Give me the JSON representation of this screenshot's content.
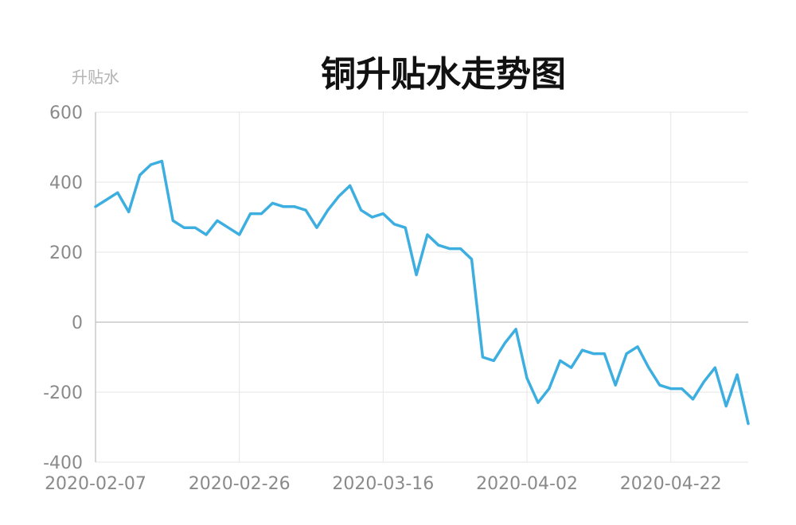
{
  "chart_data": {
    "type": "line",
    "title": "铜升贴水走势图",
    "ylabel": "升贴水",
    "xlabel": "",
    "ylim": [
      -400,
      600
    ],
    "y_ticks": [
      "600",
      "400",
      "200",
      "0",
      "-200",
      "-400"
    ],
    "y_tick_values": [
      600,
      400,
      200,
      0,
      -200,
      -400
    ],
    "x_ticks": [
      "2020-02-07",
      "2020-02-26",
      "2020-03-16",
      "2020-04-02",
      "2020-04-22"
    ],
    "x_tick_index": [
      0,
      13,
      26,
      39,
      52
    ],
    "grid": true,
    "legend": "none",
    "colors": {
      "series": "#3daee0"
    },
    "series": [
      {
        "values": [
          330,
          350,
          370,
          315,
          420,
          450,
          460,
          290,
          270,
          270,
          250,
          290,
          270,
          250,
          310,
          310,
          340,
          330,
          330,
          320,
          270,
          320,
          360,
          390,
          320,
          300,
          310,
          280,
          270,
          135,
          250,
          220,
          210,
          210,
          180,
          -100,
          -110,
          -60,
          -20,
          -160,
          -230,
          -190,
          -110,
          -130,
          -80,
          -90,
          -90,
          -180,
          -90,
          -70,
          -130,
          -180,
          -190,
          -190,
          -220,
          -170,
          -130,
          -240,
          -150,
          -290
        ]
      }
    ]
  }
}
